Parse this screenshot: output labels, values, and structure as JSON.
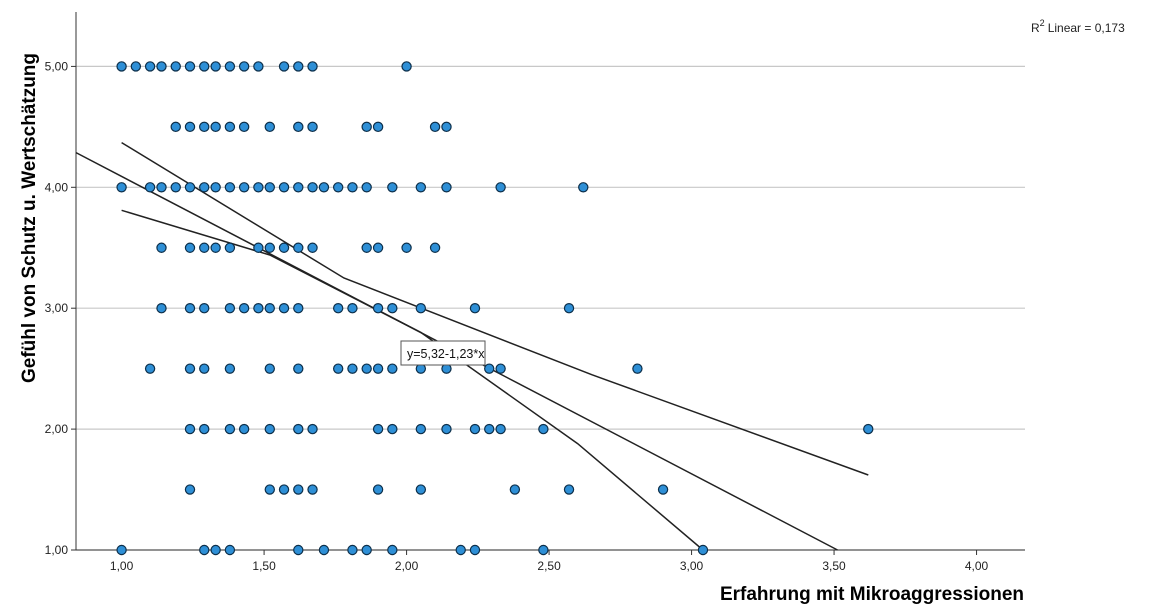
{
  "chart_data": {
    "type": "scatter",
    "title": "",
    "xlabel": "Erfahrung mit Mikroaggressionen",
    "ylabel": "Gefühl von Schutz u. Wertschätzung",
    "xlim": [
      0.84,
      4.17
    ],
    "ylim": [
      1.0,
      5.45
    ],
    "x_ticks": [
      "1,00",
      "1,50",
      "2,00",
      "2,50",
      "3,00",
      "3,50",
      "4,00"
    ],
    "x_tick_values": [
      1.0,
      1.5,
      2.0,
      2.5,
      3.0,
      3.5,
      4.0
    ],
    "y_ticks": [
      "1,00",
      "2,00",
      "3,00",
      "4,00",
      "5,00"
    ],
    "y_tick_values": [
      1.0,
      2.0,
      3.0,
      4.0,
      5.0
    ],
    "grid": "horizontal",
    "r2_label": "Linear = 0,173",
    "equation_label": "y=5,32-1,23*x",
    "point_color": "#2e8fd6",
    "point_edge_color": "#0d2f4a",
    "line_color": "#222222",
    "fit_line": {
      "slope": -1.23,
      "intercept": 5.32
    },
    "confidence_band": {
      "upper": [
        [
          1.0,
          4.37
        ],
        [
          1.78,
          3.25
        ],
        [
          2.65,
          2.45
        ],
        [
          3.62,
          1.62
        ]
      ],
      "lower": [
        [
          1.0,
          3.81
        ],
        [
          1.52,
          3.44
        ],
        [
          2.05,
          2.8
        ],
        [
          2.6,
          1.88
        ],
        [
          3.04,
          1.0
        ]
      ]
    },
    "points": [
      [
        1.0,
        5.0
      ],
      [
        1.05,
        5.0
      ],
      [
        1.1,
        5.0
      ],
      [
        1.14,
        5.0
      ],
      [
        1.19,
        5.0
      ],
      [
        1.24,
        5.0
      ],
      [
        1.29,
        5.0
      ],
      [
        1.33,
        5.0
      ],
      [
        1.38,
        5.0
      ],
      [
        1.43,
        5.0
      ],
      [
        1.48,
        5.0
      ],
      [
        1.57,
        5.0
      ],
      [
        1.62,
        5.0
      ],
      [
        1.67,
        5.0
      ],
      [
        2.0,
        5.0
      ],
      [
        1.19,
        4.5
      ],
      [
        1.24,
        4.5
      ],
      [
        1.29,
        4.5
      ],
      [
        1.33,
        4.5
      ],
      [
        1.38,
        4.5
      ],
      [
        1.43,
        4.5
      ],
      [
        1.52,
        4.5
      ],
      [
        1.62,
        4.5
      ],
      [
        1.67,
        4.5
      ],
      [
        1.86,
        4.5
      ],
      [
        1.9,
        4.5
      ],
      [
        2.1,
        4.5
      ],
      [
        2.14,
        4.5
      ],
      [
        1.0,
        4.0
      ],
      [
        1.1,
        4.0
      ],
      [
        1.14,
        4.0
      ],
      [
        1.19,
        4.0
      ],
      [
        1.24,
        4.0
      ],
      [
        1.29,
        4.0
      ],
      [
        1.33,
        4.0
      ],
      [
        1.38,
        4.0
      ],
      [
        1.43,
        4.0
      ],
      [
        1.48,
        4.0
      ],
      [
        1.52,
        4.0
      ],
      [
        1.57,
        4.0
      ],
      [
        1.62,
        4.0
      ],
      [
        1.67,
        4.0
      ],
      [
        1.71,
        4.0
      ],
      [
        1.76,
        4.0
      ],
      [
        1.81,
        4.0
      ],
      [
        1.86,
        4.0
      ],
      [
        1.95,
        4.0
      ],
      [
        2.05,
        4.0
      ],
      [
        2.14,
        4.0
      ],
      [
        2.33,
        4.0
      ],
      [
        2.62,
        4.0
      ],
      [
        1.14,
        3.5
      ],
      [
        1.24,
        3.5
      ],
      [
        1.29,
        3.5
      ],
      [
        1.33,
        3.5
      ],
      [
        1.38,
        3.5
      ],
      [
        1.48,
        3.5
      ],
      [
        1.52,
        3.5
      ],
      [
        1.57,
        3.5
      ],
      [
        1.62,
        3.5
      ],
      [
        1.67,
        3.5
      ],
      [
        1.86,
        3.5
      ],
      [
        1.9,
        3.5
      ],
      [
        2.0,
        3.5
      ],
      [
        2.1,
        3.5
      ],
      [
        1.14,
        3.0
      ],
      [
        1.24,
        3.0
      ],
      [
        1.29,
        3.0
      ],
      [
        1.38,
        3.0
      ],
      [
        1.43,
        3.0
      ],
      [
        1.48,
        3.0
      ],
      [
        1.52,
        3.0
      ],
      [
        1.57,
        3.0
      ],
      [
        1.62,
        3.0
      ],
      [
        1.76,
        3.0
      ],
      [
        1.81,
        3.0
      ],
      [
        1.9,
        3.0
      ],
      [
        1.95,
        3.0
      ],
      [
        2.05,
        3.0
      ],
      [
        2.24,
        3.0
      ],
      [
        2.57,
        3.0
      ],
      [
        1.1,
        2.5
      ],
      [
        1.24,
        2.5
      ],
      [
        1.29,
        2.5
      ],
      [
        1.38,
        2.5
      ],
      [
        1.52,
        2.5
      ],
      [
        1.62,
        2.5
      ],
      [
        1.76,
        2.5
      ],
      [
        1.81,
        2.5
      ],
      [
        1.86,
        2.5
      ],
      [
        1.9,
        2.5
      ],
      [
        1.95,
        2.5
      ],
      [
        2.05,
        2.5
      ],
      [
        2.14,
        2.5
      ],
      [
        2.29,
        2.5
      ],
      [
        2.33,
        2.5
      ],
      [
        2.81,
        2.5
      ],
      [
        1.24,
        2.0
      ],
      [
        1.29,
        2.0
      ],
      [
        1.38,
        2.0
      ],
      [
        1.43,
        2.0
      ],
      [
        1.52,
        2.0
      ],
      [
        1.62,
        2.0
      ],
      [
        1.67,
        2.0
      ],
      [
        1.9,
        2.0
      ],
      [
        1.95,
        2.0
      ],
      [
        2.05,
        2.0
      ],
      [
        2.14,
        2.0
      ],
      [
        2.24,
        2.0
      ],
      [
        2.29,
        2.0
      ],
      [
        2.33,
        2.0
      ],
      [
        2.48,
        2.0
      ],
      [
        3.62,
        2.0
      ],
      [
        1.24,
        1.5
      ],
      [
        1.52,
        1.5
      ],
      [
        1.57,
        1.5
      ],
      [
        1.62,
        1.5
      ],
      [
        1.67,
        1.5
      ],
      [
        1.9,
        1.5
      ],
      [
        2.05,
        1.5
      ],
      [
        2.38,
        1.5
      ],
      [
        2.57,
        1.5
      ],
      [
        2.9,
        1.5
      ],
      [
        1.0,
        1.0
      ],
      [
        1.29,
        1.0
      ],
      [
        1.33,
        1.0
      ],
      [
        1.38,
        1.0
      ],
      [
        1.62,
        1.0
      ],
      [
        1.71,
        1.0
      ],
      [
        1.81,
        1.0
      ],
      [
        1.86,
        1.0
      ],
      [
        1.95,
        1.0
      ],
      [
        2.19,
        1.0
      ],
      [
        2.24,
        1.0
      ],
      [
        2.48,
        1.0
      ],
      [
        3.04,
        1.0
      ]
    ]
  }
}
